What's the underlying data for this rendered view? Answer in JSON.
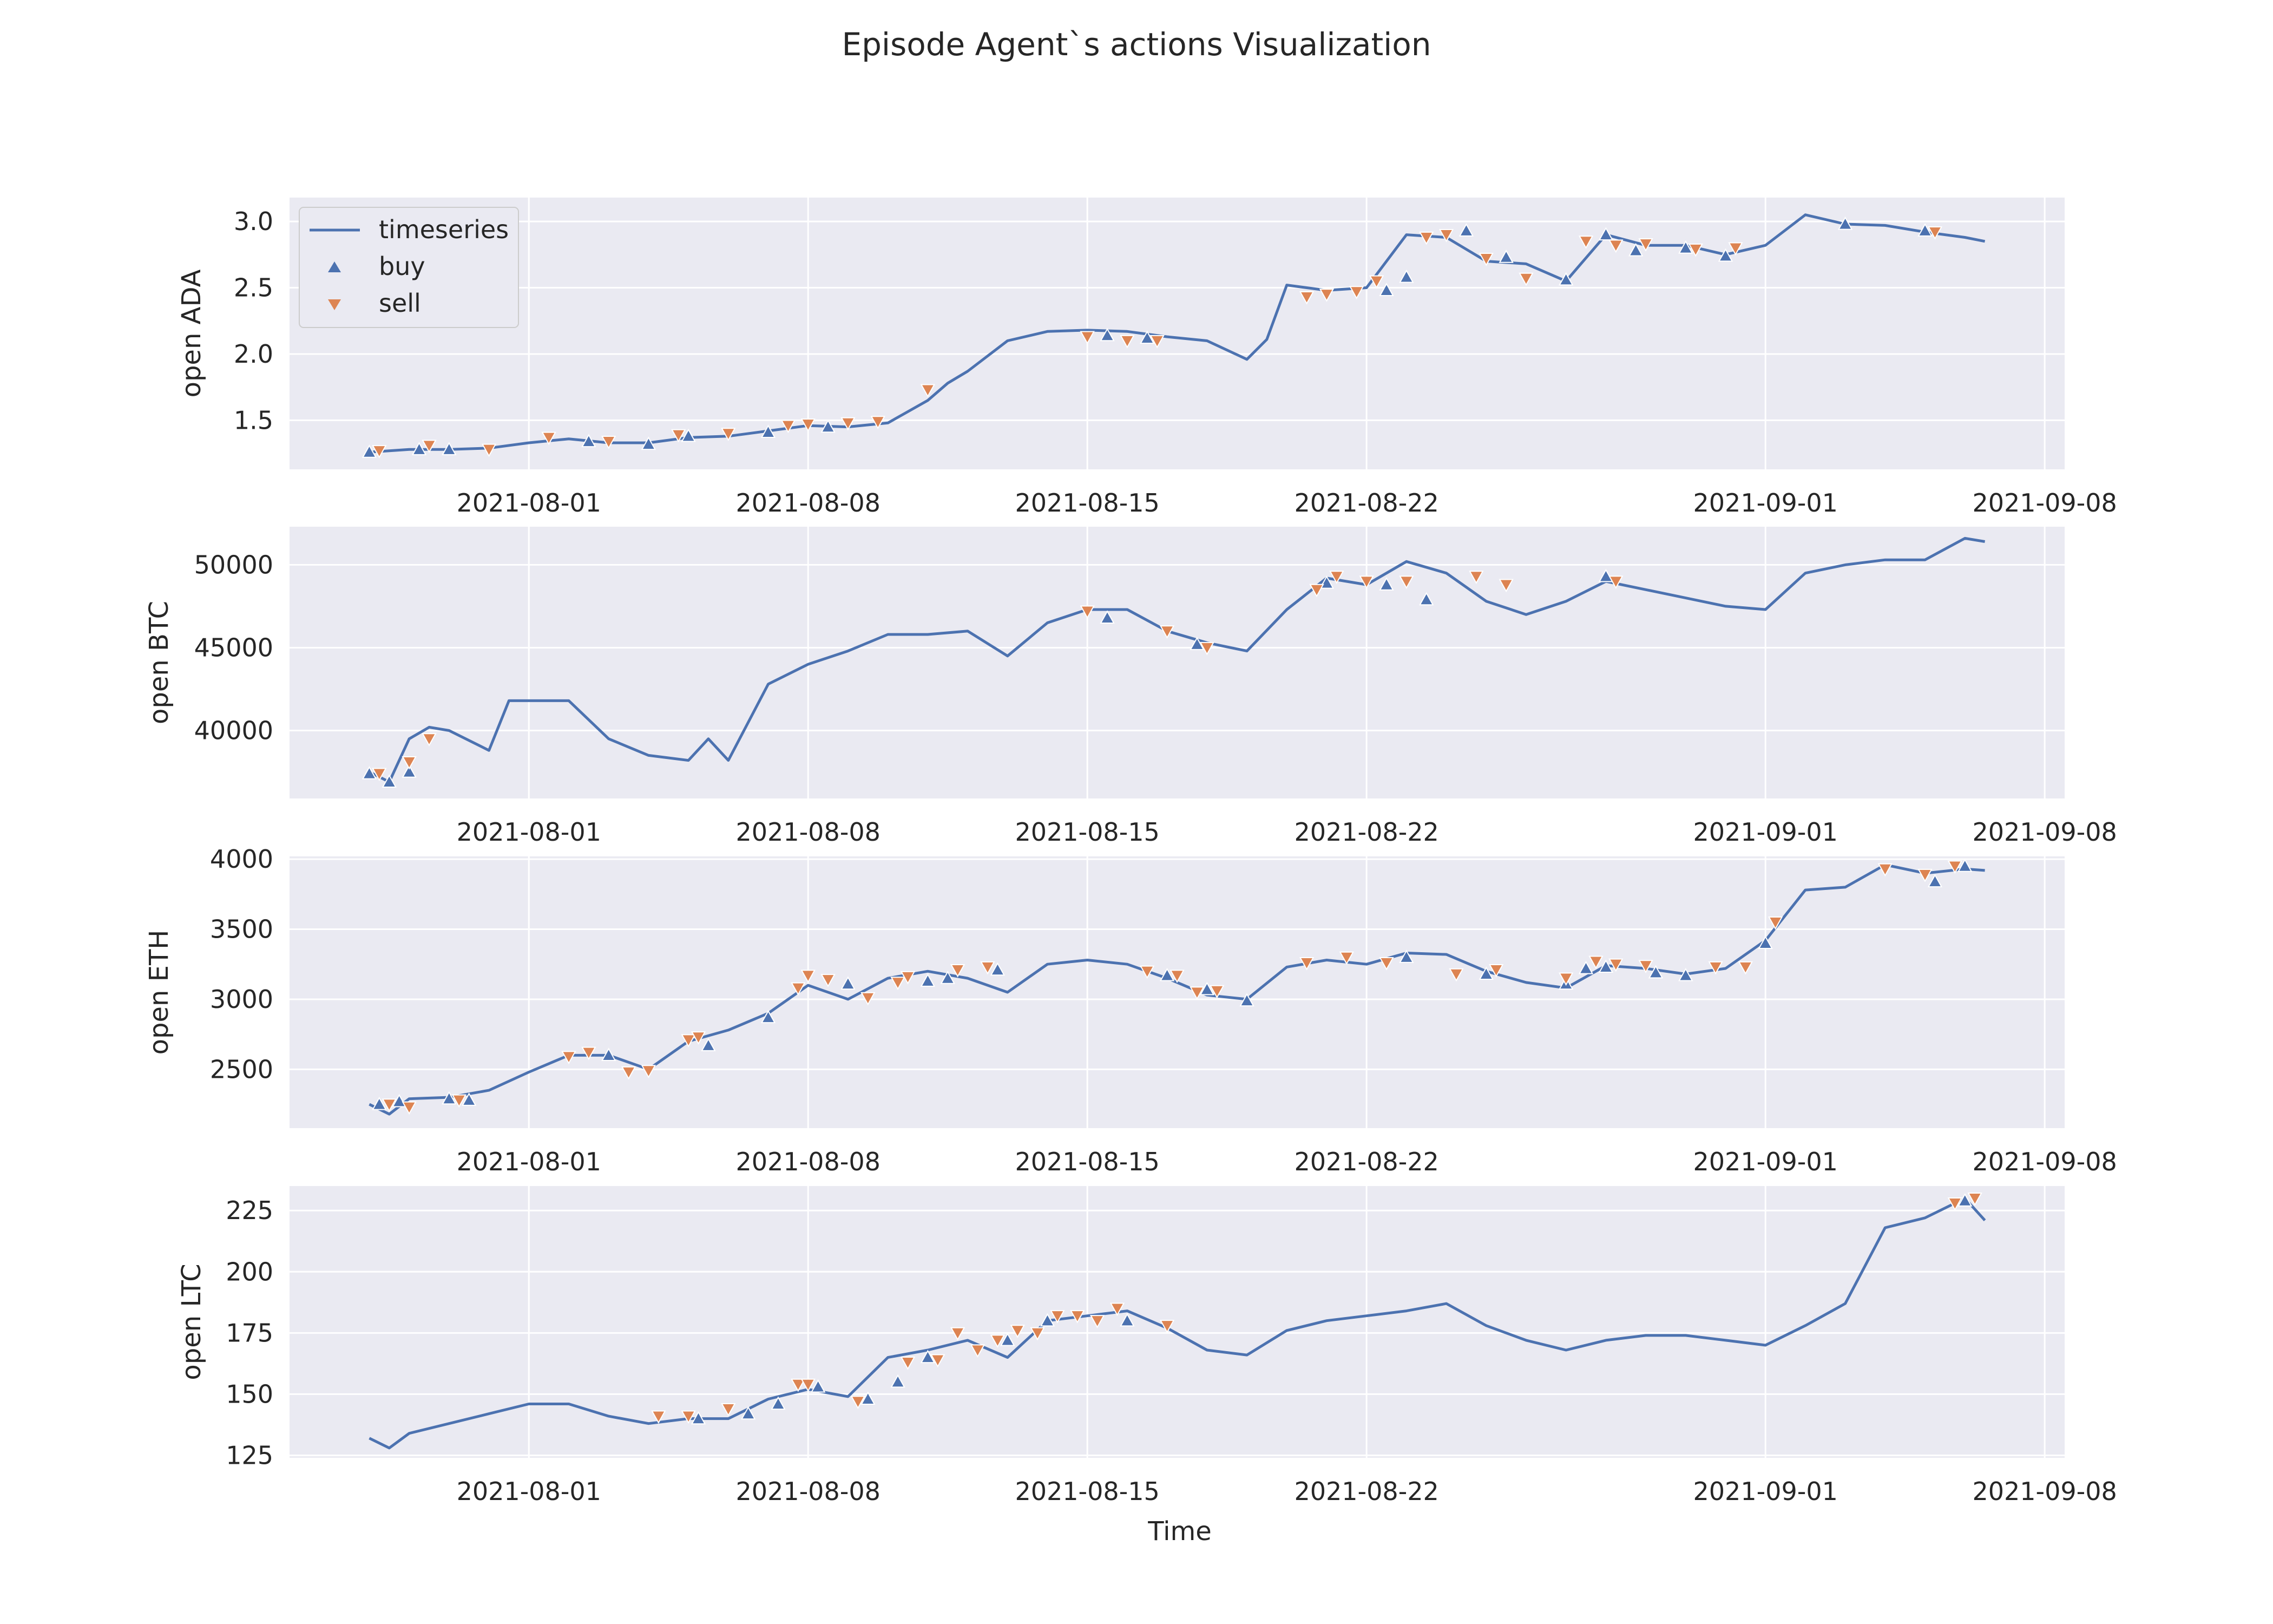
{
  "title": "Episode Agent`s actions Visualization",
  "x_axis_label": "Time",
  "colors": {
    "series": "#4c72b0",
    "buy": "#4c72b0",
    "sell": "#dd8452",
    "plot_bg": "#eaeaf2",
    "grid": "#ffffff"
  },
  "legend": {
    "position": "top-left",
    "entries": [
      "timeseries",
      "buy",
      "sell"
    ]
  },
  "chart_data": [
    {
      "type": "line",
      "ylabel": "open ADA",
      "x_ticks": [
        "2021-08-01",
        "2021-08-08",
        "2021-08-15",
        "2021-08-22",
        "2021-09-01",
        "2021-09-08"
      ],
      "y_ticks": [
        "1.5",
        "2.0",
        "2.5",
        "3.0"
      ],
      "xlim": [
        "2021-07-26",
        "2021-09-08T12:00"
      ],
      "ylim": [
        1.13,
        3.18
      ],
      "grid": true,
      "series": [
        {
          "name": "timeseries",
          "x": [
            "2021-07-28",
            "2021-07-29",
            "2021-07-30",
            "2021-07-31",
            "2021-08-01",
            "2021-08-02",
            "2021-08-03",
            "2021-08-04",
            "2021-08-05",
            "2021-08-06",
            "2021-08-07",
            "2021-08-08",
            "2021-08-09",
            "2021-08-10",
            "2021-08-11",
            "2021-08-11T12:00",
            "2021-08-12",
            "2021-08-13",
            "2021-08-14",
            "2021-08-15",
            "2021-08-16",
            "2021-08-17",
            "2021-08-18",
            "2021-08-19",
            "2021-08-19T12:00",
            "2021-08-20",
            "2021-08-21",
            "2021-08-22",
            "2021-08-23",
            "2021-08-24",
            "2021-08-25",
            "2021-08-26",
            "2021-08-27",
            "2021-08-28",
            "2021-08-29",
            "2021-08-30",
            "2021-08-31",
            "2021-09-01",
            "2021-09-02",
            "2021-09-03",
            "2021-09-04",
            "2021-09-05",
            "2021-09-06",
            "2021-09-06T12:00"
          ],
          "values": [
            1.26,
            1.28,
            1.28,
            1.29,
            1.33,
            1.36,
            1.33,
            1.33,
            1.37,
            1.38,
            1.42,
            1.46,
            1.45,
            1.48,
            1.65,
            1.78,
            1.87,
            2.1,
            2.17,
            2.18,
            2.17,
            2.13,
            2.1,
            1.96,
            2.11,
            2.52,
            2.48,
            2.5,
            2.9,
            2.88,
            2.7,
            2.68,
            2.55,
            2.9,
            2.82,
            2.82,
            2.75,
            2.82,
            3.05,
            2.98,
            2.97,
            2.92,
            2.88,
            2.85
          ]
        }
      ],
      "buy": {
        "x": [
          "2021-07-28",
          "2021-07-29T06:00",
          "2021-07-30",
          "2021-08-02T12:00",
          "2021-08-04",
          "2021-08-05",
          "2021-08-07",
          "2021-08-08T12:00",
          "2021-08-15T12:00",
          "2021-08-16T12:00",
          "2021-08-22T12:00",
          "2021-08-23",
          "2021-08-24T12:00",
          "2021-08-25T12:00",
          "2021-08-27",
          "2021-08-28",
          "2021-08-28T18:00",
          "2021-08-30",
          "2021-08-31",
          "2021-09-03",
          "2021-09-05"
        ],
        "values": [
          1.26,
          1.28,
          1.28,
          1.34,
          1.32,
          1.38,
          1.41,
          1.45,
          2.14,
          2.12,
          2.48,
          2.58,
          2.93,
          2.73,
          2.56,
          2.9,
          2.78,
          2.8,
          2.74,
          2.98,
          2.93
        ]
      },
      "sell": {
        "x": [
          "2021-07-28T06:00",
          "2021-07-29T12:00",
          "2021-07-31",
          "2021-08-01T12:00",
          "2021-08-03",
          "2021-08-04T18:00",
          "2021-08-06",
          "2021-08-07T12:00",
          "2021-08-08",
          "2021-08-09",
          "2021-08-09T18:00",
          "2021-08-11",
          "2021-08-15",
          "2021-08-16",
          "2021-08-16T18:00",
          "2021-08-20T12:00",
          "2021-08-21",
          "2021-08-21T18:00",
          "2021-08-22T06:00",
          "2021-08-23T12:00",
          "2021-08-24",
          "2021-08-25",
          "2021-08-26",
          "2021-08-27T12:00",
          "2021-08-28T06:00",
          "2021-08-29",
          "2021-08-30T06:00",
          "2021-08-31T06:00",
          "2021-09-05T06:00"
        ],
        "values": [
          1.27,
          1.31,
          1.28,
          1.37,
          1.34,
          1.39,
          1.4,
          1.46,
          1.47,
          1.48,
          1.49,
          1.73,
          2.13,
          2.1,
          2.1,
          2.43,
          2.45,
          2.47,
          2.55,
          2.88,
          2.9,
          2.72,
          2.57,
          2.85,
          2.82,
          2.83,
          2.79,
          2.8,
          2.92
        ]
      }
    },
    {
      "type": "line",
      "ylabel": "open BTC",
      "x_ticks": [
        "2021-08-01",
        "2021-08-08",
        "2021-08-15",
        "2021-08-22",
        "2021-09-01",
        "2021-09-08"
      ],
      "y_ticks": [
        "40000",
        "45000",
        "50000"
      ],
      "xlim": [
        "2021-07-26",
        "2021-09-08T12:00"
      ],
      "ylim": [
        35900,
        52300
      ],
      "grid": true,
      "series": [
        {
          "name": "timeseries",
          "x": [
            "2021-07-28",
            "2021-07-28T12:00",
            "2021-07-29",
            "2021-07-29T12:00",
            "2021-07-30",
            "2021-07-31",
            "2021-07-31T12:00",
            "2021-08-01",
            "2021-08-02",
            "2021-08-03",
            "2021-08-04",
            "2021-08-05",
            "2021-08-05T12:00",
            "2021-08-06",
            "2021-08-07",
            "2021-08-08",
            "2021-08-09",
            "2021-08-10",
            "2021-08-11",
            "2021-08-12",
            "2021-08-13",
            "2021-08-14",
            "2021-08-15",
            "2021-08-16",
            "2021-08-17",
            "2021-08-18",
            "2021-08-19",
            "2021-08-20",
            "2021-08-21",
            "2021-08-22",
            "2021-08-23",
            "2021-08-24",
            "2021-08-25",
            "2021-08-26",
            "2021-08-27",
            "2021-08-28",
            "2021-08-29",
            "2021-08-30",
            "2021-08-31",
            "2021-09-01",
            "2021-09-02",
            "2021-09-03",
            "2021-09-04",
            "2021-09-05",
            "2021-09-06",
            "2021-09-06T12:00"
          ],
          "values": [
            37500,
            36900,
            39500,
            40200,
            40000,
            38800,
            41800,
            41800,
            41800,
            39500,
            38500,
            38200,
            39500,
            38200,
            42800,
            44000,
            44800,
            45800,
            45800,
            46000,
            44500,
            46500,
            47300,
            47300,
            46000,
            45300,
            44800,
            47300,
            49200,
            48800,
            50200,
            49500,
            47800,
            47000,
            47800,
            49000,
            48500,
            48000,
            47500,
            47300,
            49500,
            50000,
            50300,
            50300,
            51600,
            51400
          ]
        }
      ],
      "buy": {
        "x": [
          "2021-07-28",
          "2021-07-28T12:00",
          "2021-07-29",
          "2021-08-15T12:00",
          "2021-08-17T18:00",
          "2021-08-21",
          "2021-08-22T12:00",
          "2021-08-23T12:00",
          "2021-08-28"
        ],
        "values": [
          37400,
          36900,
          37500,
          46800,
          45200,
          48900,
          48800,
          47900,
          49300
        ]
      },
      "sell": {
        "x": [
          "2021-07-28T06:00",
          "2021-07-29",
          "2021-07-29T12:00",
          "2021-08-15",
          "2021-08-17",
          "2021-08-18",
          "2021-08-20T18:00",
          "2021-08-21T06:00",
          "2021-08-22",
          "2021-08-23",
          "2021-08-24T18:00",
          "2021-08-25T12:00",
          "2021-08-28T06:00"
        ],
        "values": [
          37400,
          38100,
          39500,
          47200,
          46000,
          45000,
          48500,
          49300,
          49000,
          49000,
          49300,
          48800,
          49000
        ]
      }
    },
    {
      "type": "line",
      "ylabel": "open ETH",
      "x_ticks": [
        "2021-08-01",
        "2021-08-08",
        "2021-08-15",
        "2021-08-22",
        "2021-09-01",
        "2021-09-08"
      ],
      "y_ticks": [
        "2500",
        "3000",
        "3500",
        "4000"
      ],
      "xlim": [
        "2021-07-26",
        "2021-09-08T12:00"
      ],
      "ylim": [
        2080,
        4020
      ],
      "grid": true,
      "series": [
        {
          "name": "timeseries",
          "x": [
            "2021-07-28",
            "2021-07-28T12:00",
            "2021-07-29",
            "2021-07-30",
            "2021-07-31",
            "2021-08-01",
            "2021-08-02",
            "2021-08-03",
            "2021-08-04",
            "2021-08-05",
            "2021-08-06",
            "2021-08-07",
            "2021-08-08",
            "2021-08-09",
            "2021-08-10",
            "2021-08-11",
            "2021-08-12",
            "2021-08-13",
            "2021-08-14",
            "2021-08-15",
            "2021-08-16",
            "2021-08-17",
            "2021-08-18",
            "2021-08-19",
            "2021-08-20",
            "2021-08-21",
            "2021-08-22",
            "2021-08-23",
            "2021-08-24",
            "2021-08-25",
            "2021-08-26",
            "2021-08-27",
            "2021-08-28",
            "2021-08-29",
            "2021-08-30",
            "2021-08-31",
            "2021-09-01",
            "2021-09-02",
            "2021-09-03",
            "2021-09-04",
            "2021-09-05",
            "2021-09-06",
            "2021-09-06T12:00"
          ],
          "values": [
            2250,
            2180,
            2290,
            2300,
            2350,
            2480,
            2600,
            2600,
            2500,
            2700,
            2780,
            2900,
            3100,
            3000,
            3150,
            3200,
            3150,
            3050,
            3250,
            3280,
            3250,
            3150,
            3030,
            3000,
            3230,
            3280,
            3250,
            3330,
            3320,
            3200,
            3120,
            3080,
            3240,
            3220,
            3180,
            3220,
            3420,
            3780,
            3800,
            3960,
            3900,
            3930,
            3920
          ]
        }
      ],
      "buy": {
        "x": [
          "2021-07-28T06:00",
          "2021-07-28T18:00",
          "2021-07-30",
          "2021-07-30T12:00",
          "2021-08-03",
          "2021-08-05T12:00",
          "2021-08-07",
          "2021-08-09",
          "2021-08-11",
          "2021-08-11T12:00",
          "2021-08-12T18:00",
          "2021-08-17",
          "2021-08-18",
          "2021-08-19",
          "2021-08-23",
          "2021-08-25",
          "2021-08-27",
          "2021-08-27T12:00",
          "2021-08-28",
          "2021-08-29T06:00",
          "2021-08-30",
          "2021-09-01",
          "2021-09-05T06:00",
          "2021-09-06"
        ],
        "values": [
          2250,
          2270,
          2290,
          2280,
          2600,
          2670,
          2870,
          3110,
          3130,
          3150,
          3210,
          3170,
          3070,
          2990,
          3300,
          3180,
          3110,
          3220,
          3230,
          3190,
          3170,
          3400,
          3840,
          3950
        ]
      },
      "sell": {
        "x": [
          "2021-07-28T12:00",
          "2021-07-29",
          "2021-07-30T06:00",
          "2021-08-02",
          "2021-08-02T12:00",
          "2021-08-03T12:00",
          "2021-08-04",
          "2021-08-05",
          "2021-08-05T06:00",
          "2021-08-07T18:00",
          "2021-08-08",
          "2021-08-08T12:00",
          "2021-08-09T12:00",
          "2021-08-10T06:00",
          "2021-08-10T12:00",
          "2021-08-11T18:00",
          "2021-08-12T12:00",
          "2021-08-16T12:00",
          "2021-08-17T06:00",
          "2021-08-17T18:00",
          "2021-08-18T06:00",
          "2021-08-20T12:00",
          "2021-08-21T12:00",
          "2021-08-22T12:00",
          "2021-08-24T06:00",
          "2021-08-25T06:00",
          "2021-08-27",
          "2021-08-27T18:00",
          "2021-08-28T06:00",
          "2021-08-29",
          "2021-08-30T18:00",
          "2021-08-31T12:00",
          "2021-09-01T06:00",
          "2021-09-04",
          "2021-09-05",
          "2021-09-05T18:00"
        ],
        "values": [
          2250,
          2230,
          2280,
          2590,
          2620,
          2480,
          2490,
          2710,
          2730,
          3080,
          3170,
          3140,
          3010,
          3120,
          3160,
          3210,
          3230,
          3200,
          3170,
          3050,
          3060,
          3260,
          3300,
          3260,
          3180,
          3210,
          3150,
          3270,
          3250,
          3240,
          3230,
          3230,
          3550,
          3930,
          3890,
          3950
        ]
      }
    },
    {
      "type": "line",
      "ylabel": "open LTC",
      "x_ticks": [
        "2021-08-01",
        "2021-08-08",
        "2021-08-15",
        "2021-08-22",
        "2021-09-01",
        "2021-09-08"
      ],
      "y_ticks": [
        "125",
        "150",
        "175",
        "200",
        "225"
      ],
      "xlim": [
        "2021-07-26",
        "2021-09-08T12:00"
      ],
      "ylim": [
        124,
        235
      ],
      "grid": true,
      "series": [
        {
          "name": "timeseries",
          "x": [
            "2021-07-28",
            "2021-07-28T12:00",
            "2021-07-29",
            "2021-07-30",
            "2021-07-31",
            "2021-08-01",
            "2021-08-02",
            "2021-08-03",
            "2021-08-04",
            "2021-08-05",
            "2021-08-06",
            "2021-08-07",
            "2021-08-08",
            "2021-08-09",
            "2021-08-10",
            "2021-08-11",
            "2021-08-12",
            "2021-08-13",
            "2021-08-14",
            "2021-08-15",
            "2021-08-16",
            "2021-08-17",
            "2021-08-18",
            "2021-08-19",
            "2021-08-20",
            "2021-08-21",
            "2021-08-22",
            "2021-08-23",
            "2021-08-24",
            "2021-08-25",
            "2021-08-26",
            "2021-08-27",
            "2021-08-28",
            "2021-08-29",
            "2021-08-30",
            "2021-08-31",
            "2021-09-01",
            "2021-09-02",
            "2021-09-03",
            "2021-09-04",
            "2021-09-05",
            "2021-09-06",
            "2021-09-06T12:00"
          ],
          "values": [
            132,
            128,
            134,
            138,
            142,
            146,
            146,
            141,
            138,
            140,
            140,
            148,
            152,
            149,
            165,
            168,
            172,
            165,
            180,
            182,
            184,
            177,
            168,
            166,
            176,
            180,
            182,
            184,
            187,
            178,
            172,
            168,
            172,
            174,
            174,
            172,
            170,
            178,
            187,
            218,
            222,
            230,
            221
          ]
        }
      ],
      "buy": {
        "x": [
          "2021-08-05T06:00",
          "2021-08-06T12:00",
          "2021-08-07T06:00",
          "2021-08-08T06:00",
          "2021-08-09T12:00",
          "2021-08-10T06:00",
          "2021-08-11",
          "2021-08-13",
          "2021-08-14",
          "2021-08-16",
          "2021-09-06"
        ],
        "values": [
          140,
          142,
          146,
          153,
          148,
          155,
          165,
          172,
          180,
          180,
          229
        ]
      },
      "sell": {
        "x": [
          "2021-08-04T06:00",
          "2021-08-05",
          "2021-08-06",
          "2021-08-07T18:00",
          "2021-08-08",
          "2021-08-09T06:00",
          "2021-08-10T12:00",
          "2021-08-11T06:00",
          "2021-08-11T18:00",
          "2021-08-12T06:00",
          "2021-08-12T18:00",
          "2021-08-13T06:00",
          "2021-08-13T18:00",
          "2021-08-14T06:00",
          "2021-08-14T18:00",
          "2021-08-15T06:00",
          "2021-08-15T18:00",
          "2021-08-17",
          "2021-09-05T18:00",
          "2021-09-06T06:00"
        ],
        "values": [
          141,
          141,
          144,
          154,
          154,
          147,
          163,
          164,
          175,
          168,
          172,
          176,
          175,
          182,
          182,
          180,
          185,
          178,
          228,
          230
        ]
      }
    }
  ]
}
